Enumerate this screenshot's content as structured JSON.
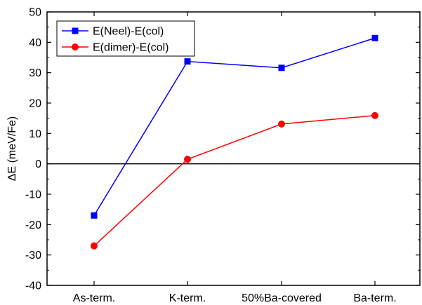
{
  "chart_data": {
    "type": "line",
    "categories": [
      "As-term.",
      "K-term.",
      "50%Ba-covered",
      "Ba-term."
    ],
    "series": [
      {
        "name": "E(Neel)-E(col)",
        "values": [
          -17,
          33.7,
          31.6,
          41.4
        ],
        "color": "#0000ff",
        "marker": "square"
      },
      {
        "name": "E(dimer)-E(col)",
        "values": [
          -27,
          1.5,
          13.1,
          15.9
        ],
        "color": "#ff0000",
        "marker": "circle"
      }
    ],
    "title": "",
    "xlabel": "",
    "ylabel": "ΔE (meV/Fe)",
    "ylim": [
      -40,
      50
    ],
    "yticks": [
      -40,
      -30,
      -20,
      -10,
      0,
      10,
      20,
      30,
      40,
      50
    ],
    "reference_line_y": 0,
    "grid": false,
    "legend_position": "top-left"
  }
}
